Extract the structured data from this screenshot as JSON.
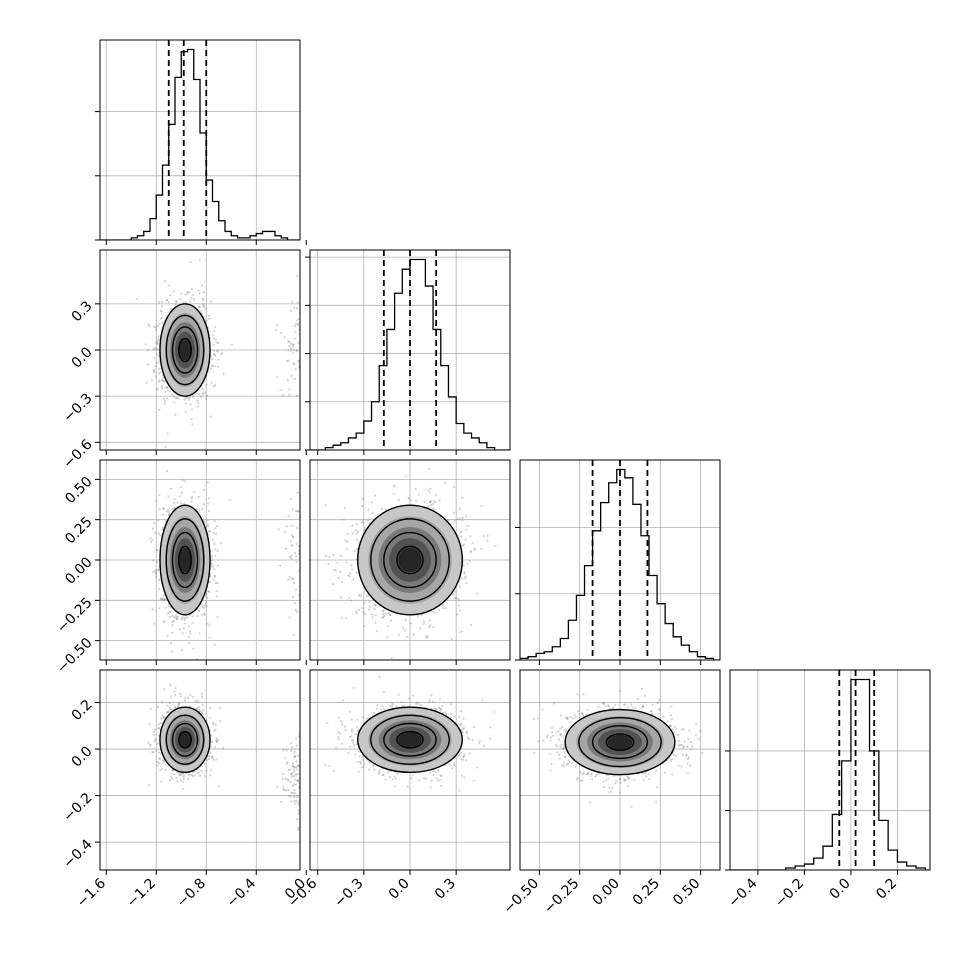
{
  "chart_data": {
    "type": "corner",
    "n_params": 4,
    "grid": true,
    "colors": {
      "line": "#000000",
      "grid": "#b0b0b0",
      "samples": "#7f7f7f",
      "spine": "#000000"
    },
    "params": [
      {
        "range": [
          -1.65,
          -0.05
        ],
        "ticks": [
          -1.6,
          -1.2,
          -0.8,
          -0.4,
          0.0
        ],
        "tick_labels": [
          "−1.6",
          "−1.2",
          "−0.8",
          "−0.4",
          "0.0"
        ],
        "quantiles": [
          -1.1,
          -0.98,
          -0.8
        ],
        "hist": {
          "bins": [
            -1.65,
            -1.6,
            -1.55,
            -1.5,
            -1.45,
            -1.4,
            -1.35,
            -1.3,
            -1.25,
            -1.2,
            -1.15,
            -1.1,
            -1.05,
            -1.0,
            -0.95,
            -0.9,
            -0.85,
            -0.8,
            -0.75,
            -0.7,
            -0.65,
            -0.6,
            -0.55,
            -0.5,
            -0.45,
            -0.4,
            -0.35,
            -0.3,
            -0.25,
            -0.2,
            -0.15,
            -0.1,
            -0.05
          ],
          "counts": [
            0,
            0,
            0,
            0,
            0,
            1,
            2,
            4,
            10,
            21,
            35,
            54,
            76,
            88,
            89,
            75,
            50,
            28,
            18,
            9,
            4,
            2,
            1,
            1,
            2,
            3,
            4,
            4,
            2,
            1,
            0,
            0
          ]
        },
        "hist_yticks": [
          0,
          30,
          60
        ]
      },
      {
        "range": [
          -0.65,
          0.65
        ],
        "ticks": [
          -0.6,
          -0.3,
          0.0,
          0.3
        ],
        "tick_labels": [
          "−0.6",
          "−0.3",
          "0.0",
          "0.3"
        ],
        "quantiles": [
          -0.17,
          0.0,
          0.17
        ],
        "hist": {
          "bins": [
            -0.65,
            -0.6,
            -0.55,
            -0.5,
            -0.45,
            -0.4,
            -0.35,
            -0.3,
            -0.25,
            -0.2,
            -0.15,
            -0.1,
            -0.05,
            0.0,
            0.05,
            0.1,
            0.15,
            0.2,
            0.25,
            0.3,
            0.35,
            0.4,
            0.45,
            0.5,
            0.55,
            0.6,
            0.65
          ],
          "counts": [
            0,
            0,
            1,
            2,
            3,
            5,
            7,
            12,
            20,
            35,
            50,
            65,
            75,
            79,
            79,
            68,
            50,
            35,
            22,
            11,
            7,
            5,
            3,
            1,
            0,
            0
          ]
        },
        "hist_yticks": [
          0,
          20,
          40,
          60,
          80
        ]
      },
      {
        "range": [
          -0.62,
          0.62
        ],
        "ticks": [
          -0.5,
          -0.25,
          0.0,
          0.25,
          0.5
        ],
        "tick_labels": [
          "−0.50",
          "−0.25",
          "0.00",
          "0.25",
          "0.50"
        ],
        "quantiles": [
          -0.17,
          0.0,
          0.17
        ],
        "hist": {
          "bins": [
            -0.62,
            -0.57,
            -0.52,
            -0.47,
            -0.42,
            -0.37,
            -0.32,
            -0.27,
            -0.22,
            -0.17,
            -0.12,
            -0.07,
            -0.02,
            0.03,
            0.08,
            0.13,
            0.18,
            0.23,
            0.28,
            0.33,
            0.38,
            0.43,
            0.48,
            0.53,
            0.58,
            0.62
          ],
          "counts": [
            1,
            2,
            4,
            5,
            8,
            13,
            24,
            39,
            57,
            78,
            95,
            107,
            115,
            110,
            94,
            75,
            51,
            34,
            22,
            14,
            9,
            5,
            2,
            1,
            0
          ]
        },
        "hist_yticks": [
          0,
          40,
          80
        ]
      },
      {
        "range": [
          -0.52,
          0.34
        ],
        "ticks": [
          -0.4,
          -0.2,
          0.0,
          0.2
        ],
        "tick_labels": [
          "−0.4",
          "−0.2",
          "0.0",
          "0.2"
        ],
        "quantiles": [
          -0.05,
          0.02,
          0.1
        ],
        "hist": {
          "bins": [
            -0.52,
            -0.48,
            -0.44,
            -0.4,
            -0.36,
            -0.32,
            -0.28,
            -0.24,
            -0.2,
            -0.16,
            -0.12,
            -0.08,
            -0.04,
            0.0,
            0.04,
            0.08,
            0.12,
            0.16,
            0.2,
            0.24,
            0.28,
            0.32,
            0.34
          ],
          "counts": [
            0,
            0,
            0,
            0,
            0,
            0,
            1,
            2,
            3,
            6,
            12,
            28,
            55,
            96,
            96,
            60,
            25,
            10,
            4,
            2,
            1,
            0
          ]
        },
        "hist_yticks": [
          0,
          30,
          60
        ]
      }
    ],
    "pairs": [
      {
        "row": 1,
        "col": 0,
        "center": [
          -0.97,
          0.0
        ],
        "sd": [
          0.1,
          0.15
        ],
        "rho": 0.0,
        "tail": {
          "center": [
            -0.02,
            0.0
          ],
          "sd": [
            0.08,
            0.16
          ]
        }
      },
      {
        "row": 2,
        "col": 0,
        "center": [
          -0.97,
          0.0
        ],
        "sd": [
          0.1,
          0.17
        ],
        "rho": 0.0,
        "tail": {
          "center": [
            -0.02,
            0.0
          ],
          "sd": [
            0.08,
            0.18
          ]
        }
      },
      {
        "row": 2,
        "col": 1,
        "center": [
          0.0,
          0.0
        ],
        "sd": [
          0.17,
          0.17
        ],
        "rho": 0.05
      },
      {
        "row": 3,
        "col": 0,
        "center": [
          -0.97,
          0.04
        ],
        "sd": [
          0.1,
          0.07
        ],
        "rho": 0.0,
        "tail": {
          "center": [
            -0.02,
            -0.12
          ],
          "sd": [
            0.08,
            0.1
          ]
        }
      },
      {
        "row": 3,
        "col": 1,
        "center": [
          0.0,
          0.04
        ],
        "sd": [
          0.17,
          0.07
        ],
        "rho": 0.0
      },
      {
        "row": 3,
        "col": 2,
        "center": [
          0.0,
          0.03
        ],
        "sd": [
          0.17,
          0.07
        ],
        "rho": 0.0
      }
    ]
  }
}
